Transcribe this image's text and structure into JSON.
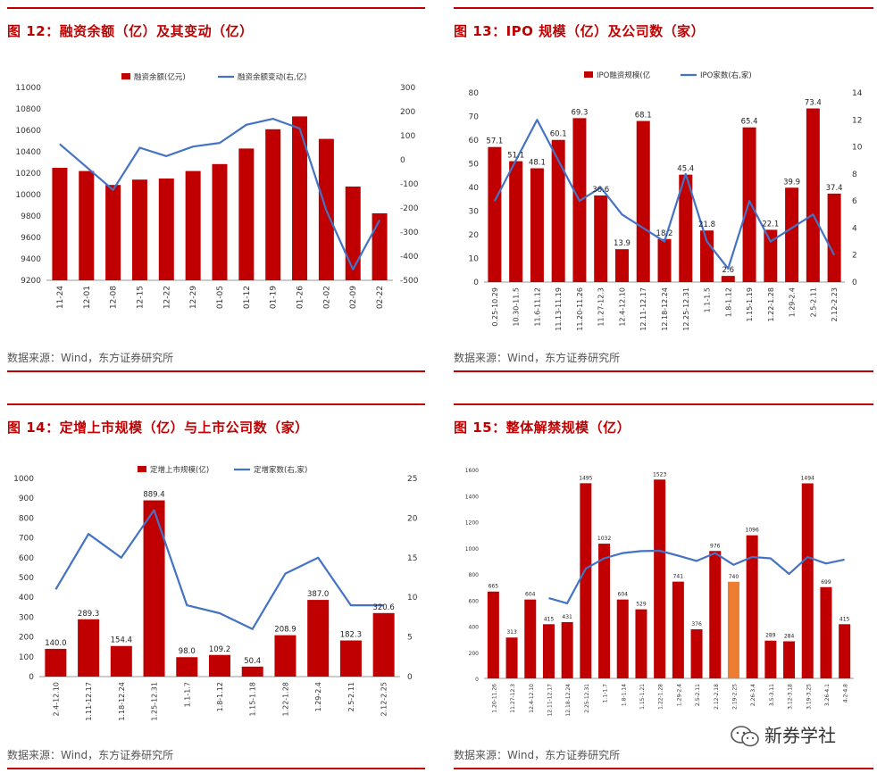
{
  "panels": [
    {
      "title": "图 12：融资余额（亿）及其变动（亿）",
      "source": "数据来源：Wind，东方证券研究所",
      "legend": {
        "bar": "融资余额(亿元)",
        "line": "融资余额变动(右,亿)"
      }
    },
    {
      "title": "图 13：IPO 规模（亿）及公司数（家）",
      "source": "数据来源：Wind，东方证券研究所",
      "legend": {
        "bar": "IPO融资规模(亿",
        "line": "IPO家数(右,家)"
      }
    },
    {
      "title": "图 14：定增上市规模（亿）与上市公司数（家）",
      "source": "数据来源：Wind，东方证券研究所",
      "legend": {
        "bar": "定增上市规模(亿)",
        "line": "定增家数(右,家)"
      }
    },
    {
      "title": "图 15：整体解禁规模（亿）",
      "source": "数据来源：Wind，东方证券研究所",
      "legend": null
    }
  ],
  "watermark": {
    "text": "新券学社"
  },
  "colors": {
    "bar": "#c00000",
    "line": "#4472c4",
    "highlight": "#ed7d31",
    "accent": "#c00000"
  },
  "chart_data": [
    {
      "type": "bar+line",
      "title": "融资余额（亿）及其变动（亿）",
      "categories": [
        "11-24",
        "12-01",
        "12-08",
        "12-15",
        "12-22",
        "12-29",
        "01-05",
        "01-12",
        "01-19",
        "01-26",
        "02-02",
        "02-09",
        "02-22"
      ],
      "series": [
        {
          "name": "融资余额(亿元)",
          "axis": "left",
          "values": [
            10250,
            10220,
            10090,
            10140,
            10150,
            10220,
            10285,
            10430,
            10610,
            10730,
            10520,
            10075,
            9825
          ]
        },
        {
          "name": "融资余额变动(右,亿)",
          "axis": "right",
          "values": [
            65,
            -30,
            -125,
            50,
            15,
            55,
            70,
            145,
            170,
            130,
            -210,
            -455,
            -250
          ]
        }
      ],
      "ylim": [
        9200,
        11000
      ],
      "yticks": [
        9200,
        9400,
        9600,
        9800,
        10000,
        10200,
        10400,
        10600,
        10800,
        11000
      ],
      "y2lim": [
        -500,
        300
      ],
      "y2ticks": [
        -500,
        -400,
        -300,
        -200,
        -100,
        0,
        100,
        200,
        300
      ],
      "data_labels": false
    },
    {
      "type": "bar+line",
      "title": "IPO 规模（亿）及公司数（家）",
      "categories": [
        "0.25-10.29",
        "10.30-11.5",
        "11.6-11.12",
        "11.13-11.19",
        "11.20-11.26",
        "11.27-12.3",
        "12.4-12.10",
        "12.11-12.17",
        "12.18-12.24",
        "12.25-12.31",
        "1.1-1.5",
        "1.8-1.12",
        "1.15-1.19",
        "1.22-1.28",
        "1.29-2.4",
        "2.5-2.11",
        "2.12-2.23"
      ],
      "series": [
        {
          "name": "IPO融资规模(亿",
          "axis": "left",
          "values": [
            57.1,
            51.1,
            48.1,
            60.1,
            69.3,
            36.6,
            13.9,
            68.1,
            18.2,
            45.4,
            21.8,
            2.6,
            65.4,
            22.1,
            39.9,
            73.4,
            37.4
          ]
        },
        {
          "name": "IPO家数(右,家)",
          "axis": "right",
          "values": [
            6,
            9,
            12,
            9,
            6,
            7,
            5,
            4,
            3,
            8,
            3,
            1,
            6,
            3,
            4,
            5,
            2
          ]
        }
      ],
      "labels": [
        "57.1",
        "51.1",
        "48.1",
        "60.1",
        "69.3",
        "36.6",
        "13.9",
        "68.1",
        "18.2",
        "45.4",
        "21.8",
        "2.6",
        "65.4",
        "22.1",
        "39.9",
        "73.4",
        "37.4"
      ],
      "ylim": [
        0,
        80
      ],
      "yticks": [
        0,
        10,
        20,
        30,
        40,
        50,
        60,
        70,
        80
      ],
      "y2lim": [
        0,
        14
      ],
      "y2ticks": [
        0,
        2,
        4,
        6,
        8,
        10,
        12,
        14
      ],
      "data_labels": true
    },
    {
      "type": "bar+line",
      "title": "定增上市规模（亿）与上市公司数（家）",
      "categories": [
        "2.4-12.10",
        "1.11-12.17",
        "1.18-12.24",
        "1.25-12.31",
        "1.1-1.7",
        "1.8-1.12",
        "1.15-1.18",
        "1.22-1.28",
        "1.29-2.4",
        "2.5-2.11",
        "2.12-2.25"
      ],
      "series": [
        {
          "name": "定增上市规模(亿)",
          "axis": "left",
          "values": [
            140.0,
            289.3,
            154.4,
            889.4,
            98.0,
            109.2,
            50.4,
            208.9,
            387.0,
            182.3,
            320.6
          ]
        },
        {
          "name": "定增家数(右,家)",
          "axis": "right",
          "values": [
            11,
            18,
            15,
            21,
            9,
            8,
            6,
            13,
            15,
            9,
            9
          ]
        }
      ],
      "labels": [
        "140.0",
        "289.3",
        "154.4",
        "889.4",
        "98.0",
        "109.2",
        "50.4",
        "208.9",
        "387.0",
        "182.3",
        "320.6"
      ],
      "ylim": [
        0,
        1000
      ],
      "yticks": [
        0,
        100,
        200,
        300,
        400,
        500,
        600,
        700,
        800,
        900,
        1000
      ],
      "y2lim": [
        0,
        25
      ],
      "y2ticks": [
        0,
        5,
        10,
        15,
        20,
        25
      ],
      "data_labels": true
    },
    {
      "type": "bar+line",
      "title": "整体解禁规模（亿）",
      "categories": [
        "1.20-11.26",
        "11.27-12.3",
        "12.4-12.10",
        "12.11-12.17",
        "12.18-12.24",
        "2.25-12.31",
        "1.1-1.7",
        "1.8-1.14",
        "1.15-1.21",
        "1.22-1.28",
        "1.29-2.4",
        "2.5-2.11",
        "2.12-2.18",
        "2.19-2.25",
        "2.26-3.4",
        "3.5-3.11",
        "3.12-3.18",
        "3.19-3.25",
        "3.26-4.1",
        "4.2-4.8"
      ],
      "series": [
        {
          "name": "解禁规模",
          "axis": "left",
          "values": [
            665,
            313,
            604,
            415,
            431,
            1495,
            1032,
            604,
            529,
            1523,
            741,
            376,
            976,
            740,
            1096,
            289,
            284,
            1494,
            699,
            415
          ]
        },
        {
          "name": "趋势",
          "axis": "left",
          "values": [
            null,
            null,
            null,
            615,
            575,
            840,
            920,
            960,
            975,
            978,
            940,
            900,
            960,
            870,
            930,
            920,
            800,
            930,
            880,
            910
          ]
        }
      ],
      "labels": [
        "665",
        "313",
        "604",
        "415",
        "431",
        "1495",
        "1032",
        "604",
        "529",
        "1523",
        "741",
        "376",
        "976",
        "740",
        "1096",
        "289",
        "284",
        "1494",
        "699",
        "415"
      ],
      "highlight_index": 13,
      "ylim": [
        0,
        1600
      ],
      "yticks": [
        0,
        200,
        400,
        600,
        800,
        1000,
        1200,
        1400,
        1600
      ],
      "data_labels": true
    }
  ]
}
